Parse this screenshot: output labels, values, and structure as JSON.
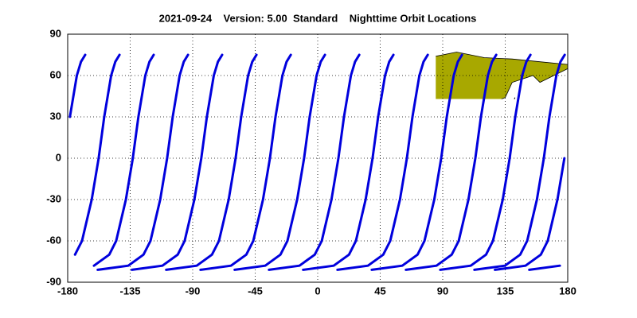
{
  "chart_data": {
    "type": "map",
    "title": "2021-09-24    Version: 5.00  Standard    Nighttime Orbit Locations",
    "color": "#0000dd",
    "grid": true,
    "xlim": [
      -180,
      180
    ],
    "ylim": [
      -90,
      90
    ],
    "xticks": [
      -180,
      -135,
      -90,
      -45,
      0,
      45,
      90,
      135,
      180
    ],
    "yticks": [
      -90,
      -60,
      -30,
      0,
      30,
      60,
      90
    ],
    "series": [
      {
        "x": [
          127.6,
          149.6,
          160.6,
          165.6,
          172.6,
          177.6,
          null,
          -178.4,
          -173.4,
          -170.4,
          -167.4
        ],
        "y": [
          -81,
          -78,
          -70,
          -60,
          -30,
          0,
          null,
          30,
          60,
          70,
          75
        ]
      },
      {
        "x": [
          152.3,
          174.3,
          null,
          -174.7,
          -169.7,
          -162.7,
          -157.7,
          -153.7,
          -148.7,
          -145.7,
          -142.7
        ],
        "y": [
          -81,
          -78,
          null,
          -70,
          -60,
          -30,
          0,
          30,
          60,
          70,
          75
        ]
      },
      {
        "x": [
          -161.1,
          -150.1,
          -145.1,
          -138.1,
          -133.1,
          -129.1,
          -124.1,
          -121.1,
          -118.1
        ],
        "y": [
          -78,
          -70,
          -60,
          -30,
          0,
          30,
          60,
          70,
          75
        ]
      },
      {
        "x": [
          -158.4,
          -136.4,
          -125.4,
          -120.4,
          -113.4,
          -108.4,
          -104.4,
          -99.4,
          -96.4,
          -93.4
        ],
        "y": [
          -81,
          -78,
          -70,
          -60,
          -30,
          0,
          30,
          60,
          70,
          75
        ]
      },
      {
        "x": [
          -133.8,
          -111.8,
          -100.8,
          -95.8,
          -88.8,
          -83.8,
          -79.8,
          -74.8,
          -71.8,
          -68.8
        ],
        "y": [
          -81,
          -78,
          -70,
          -60,
          -30,
          0,
          30,
          60,
          70,
          75
        ]
      },
      {
        "x": [
          -109.1,
          -87.1,
          -76.1,
          -71.1,
          -64.1,
          -59.1,
          -55.1,
          -50.1,
          -47.1,
          -44.1
        ],
        "y": [
          -81,
          -78,
          -70,
          -60,
          -30,
          0,
          30,
          60,
          70,
          75
        ]
      },
      {
        "x": [
          -84.4,
          -62.4,
          -51.4,
          -46.4,
          -39.4,
          -34.4,
          -30.4,
          -25.4,
          -22.4,
          -19.4
        ],
        "y": [
          -81,
          -78,
          -70,
          -60,
          -30,
          0,
          30,
          60,
          70,
          75
        ]
      },
      {
        "x": [
          -59.8,
          -37.8,
          -26.8,
          -21.8,
          -14.8,
          -9.8,
          -5.8,
          -0.8,
          2.2,
          5.2
        ],
        "y": [
          -81,
          -78,
          -70,
          -60,
          -30,
          0,
          30,
          60,
          70,
          75
        ]
      },
      {
        "x": [
          -35.1,
          -13.1,
          -2.1,
          2.9,
          9.9,
          14.9,
          18.9,
          23.9,
          26.9,
          29.9
        ],
        "y": [
          -81,
          -78,
          -70,
          -60,
          -30,
          0,
          30,
          60,
          70,
          75
        ]
      },
      {
        "x": [
          -10.5,
          11.5,
          22.5,
          27.5,
          34.5,
          39.5,
          43.5,
          48.5,
          51.5,
          54.5
        ],
        "y": [
          -81,
          -78,
          -70,
          -60,
          -30,
          0,
          30,
          60,
          70,
          75
        ]
      },
      {
        "x": [
          14.2,
          36.2,
          47.2,
          52.2,
          59.2,
          64.2,
          68.2,
          73.2,
          76.2,
          79.2
        ],
        "y": [
          -81,
          -78,
          -70,
          -60,
          -30,
          0,
          30,
          60,
          70,
          75
        ]
      },
      {
        "x": [
          38.9,
          60.9,
          71.9,
          76.9,
          83.9,
          88.9,
          92.9,
          97.9,
          100.9,
          103.9
        ],
        "y": [
          -81,
          -78,
          -70,
          -60,
          -30,
          0,
          30,
          60,
          70,
          75
        ]
      },
      {
        "x": [
          63.5,
          85.5,
          96.5,
          101.5,
          108.5,
          113.5,
          117.5,
          122.5,
          125.5,
          128.5
        ],
        "y": [
          -81,
          -78,
          -70,
          -60,
          -30,
          0,
          30,
          60,
          70,
          75
        ]
      },
      {
        "x": [
          88.2,
          110.2,
          121.2,
          126.2,
          133.2,
          138.2,
          142.2,
          147.2,
          150.2,
          153.2
        ],
        "y": [
          -81,
          -78,
          -70,
          -60,
          -30,
          0,
          30,
          60,
          70,
          75
        ]
      },
      {
        "x": [
          112.8,
          134.8,
          145.8,
          150.8,
          157.8,
          162.8,
          166.8,
          171.8,
          174.8,
          177.8
        ],
        "y": [
          -81,
          -78,
          -70,
          -60,
          -30,
          0,
          30,
          60,
          70,
          75
        ]
      }
    ]
  }
}
